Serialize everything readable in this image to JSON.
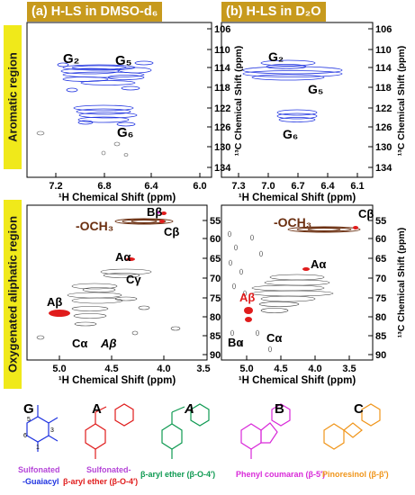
{
  "panels": {
    "a_title": "(a) H-LS in DMSO-d₆",
    "b_title": "(b) H-LS in D₂O"
  },
  "regions": {
    "aromatic": "Aromatic region",
    "aliphatic": "Oxygenated aliphatic region"
  },
  "axes": {
    "x_label": "¹H Chemical Shift (ppm)",
    "y_label": "¹³C Chemical Shift (ppm)"
  },
  "colors": {
    "guaiacyl": "#1f33e0",
    "ether": "#e01c1c",
    "methoxy": "#6b2f10",
    "phenylcoumaran": "#d92ad9",
    "pinoresinol": "#f0951a",
    "ether_green": "#0f9a52",
    "region_band": "#f0e91a",
    "title_band": "#c79a1d"
  },
  "plots": {
    "top_left": {
      "x_ticks": [
        "7.2",
        "6.8",
        "6.4",
        "6.0"
      ],
      "y_ticks": [
        "106",
        "110",
        "114",
        "118",
        "122",
        "126",
        "130",
        "134"
      ],
      "labels": [
        "G₂",
        "G₅",
        "G₆"
      ]
    },
    "top_right": {
      "x_ticks": [
        "7.3",
        "7.0",
        "6.7",
        "6.4",
        "6.1"
      ],
      "y_ticks": [
        "106",
        "110",
        "114",
        "118",
        "122",
        "126",
        "130",
        "134"
      ],
      "labels": [
        "G₂",
        "G₅",
        "G₆"
      ]
    },
    "bottom_left": {
      "x_ticks": [
        "5.0",
        "4.5",
        "4.0",
        "3.5"
      ],
      "y_ticks": [
        "55",
        "60",
        "65",
        "70",
        "75",
        "80",
        "85",
        "90"
      ],
      "labels": [
        "-OCH₃",
        "Bβ",
        "Cβ",
        "Aα",
        "Cγ",
        "Aβ",
        "Cα",
        "Aβ"
      ]
    },
    "bottom_right": {
      "x_ticks": [
        "5.0",
        "4.5",
        "4.0",
        "3.5"
      ],
      "y_ticks": [
        "55",
        "60",
        "65",
        "70",
        "75",
        "80",
        "85",
        "90"
      ],
      "labels": [
        "-OCH₃",
        "Cβ",
        "Aα",
        "Aβ",
        "Bα",
        "Cα"
      ]
    }
  },
  "structures": [
    {
      "letter": "G",
      "name1": "Sulfonated",
      "name2": "-Guaiacyl",
      "color": "#1f33e0"
    },
    {
      "letter": "A",
      "name1": "Sulfonated-",
      "name2": "β-aryl ether (β-O-4′)",
      "color": "#e01c1c"
    },
    {
      "letter": "A",
      "name1": "β-aryl ether (β-O-4′)",
      "name2": "",
      "color": "#0f9a52"
    },
    {
      "letter": "B",
      "name1": "Phenyl coumaran (β-5′)",
      "name2": "",
      "color": "#d92ad9"
    },
    {
      "letter": "C",
      "name1": "Pinoresinol (β-β′)",
      "name2": "",
      "color": "#f0951a"
    }
  ]
}
